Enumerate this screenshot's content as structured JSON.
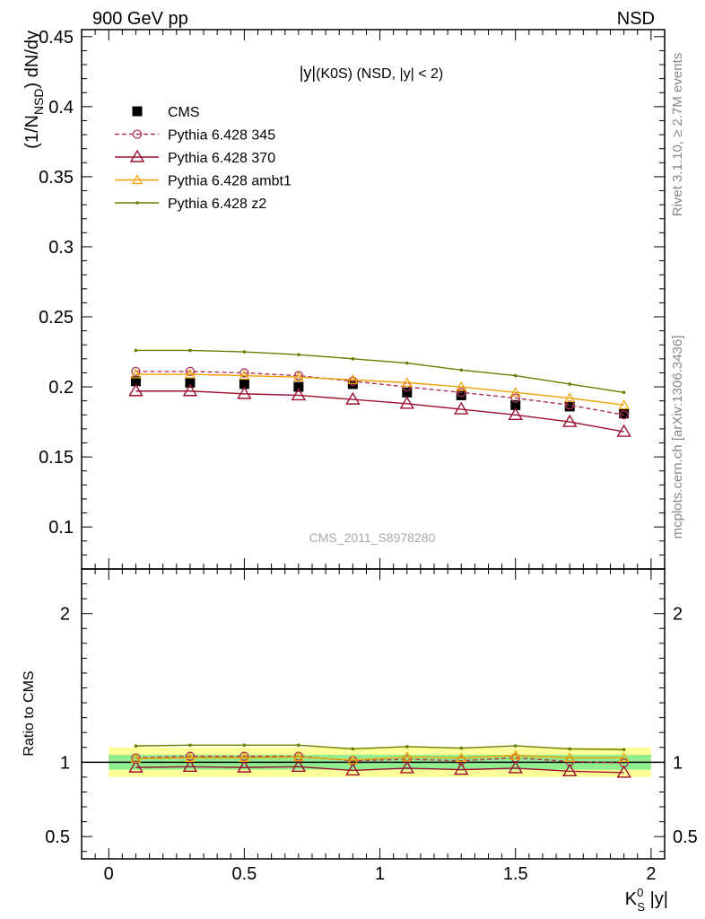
{
  "header": {
    "left": "900 GeV pp",
    "right": "NSD"
  },
  "side_labels": {
    "rivet": "Rivet 3.1.10, ≥ 2.7M events",
    "mcplots": "mcplots.cern.ch [arXiv:1306.3436]"
  },
  "watermark": "CMS_2011_S8978280",
  "colors": {
    "cms": "#000000",
    "p345": "#b03050",
    "p370": "#9b1030",
    "ambt1": "#f0a000",
    "z2": "#6e7a00",
    "band_inner": "#90ee90",
    "band_outer": "#ffff99"
  },
  "chart_data": [
    {
      "type": "line",
      "title": "|y|(K0S) (NSD, |y| < 2)",
      "title_parts": {
        "a": "|y|",
        "b": "(K0S) (NSD, |y| < 2)"
      },
      "ylabel": "(1/N_NSD) dN/dy",
      "ylabel_parts": {
        "pre": "(1/N",
        "sub": "NSD",
        "post": ") dN/dy"
      },
      "ylim": [
        0.07,
        0.455
      ],
      "xlim": [
        -0.1,
        2.05
      ],
      "yticks": [
        {
          "v": 0.1,
          "label": "0.1"
        },
        {
          "v": 0.15,
          "label": "0.15"
        },
        {
          "v": 0.2,
          "label": "0.2"
        },
        {
          "v": 0.25,
          "label": "0.25"
        },
        {
          "v": 0.3,
          "label": "0.3"
        },
        {
          "v": 0.35,
          "label": "0.35"
        },
        {
          "v": 0.4,
          "label": "0.4"
        },
        {
          "v": 0.45,
          "label": "0.45"
        }
      ],
      "x": [
        0.1,
        0.3,
        0.5,
        0.7,
        0.9,
        1.1,
        1.3,
        1.5,
        1.7,
        1.9
      ],
      "series": [
        {
          "key": "cms",
          "name": "CMS",
          "marker": "square",
          "values": [
            0.204,
            0.203,
            0.202,
            0.2,
            0.202,
            0.196,
            0.194,
            0.187,
            0.186,
            0.181
          ]
        },
        {
          "key": "p345",
          "name": "Pythia 6.428 345",
          "marker": "circle",
          "dashed": true,
          "values": [
            0.211,
            0.211,
            0.21,
            0.208,
            0.204,
            0.2,
            0.196,
            0.192,
            0.187,
            0.18
          ]
        },
        {
          "key": "p370",
          "name": "Pythia 6.428 370",
          "marker": "triangle",
          "values": [
            0.197,
            0.197,
            0.195,
            0.194,
            0.191,
            0.188,
            0.184,
            0.18,
            0.175,
            0.168
          ]
        },
        {
          "key": "ambt1",
          "name": "Pythia 6.428 ambt1",
          "marker": "triangle-small",
          "values": [
            0.209,
            0.209,
            0.208,
            0.207,
            0.205,
            0.203,
            0.2,
            0.196,
            0.192,
            0.187
          ]
        },
        {
          "key": "z2",
          "name": "Pythia 6.428 z2",
          "marker": "dot",
          "values": [
            0.226,
            0.226,
            0.225,
            0.223,
            0.22,
            0.217,
            0.212,
            0.208,
            0.202,
            0.196
          ]
        }
      ],
      "grid": false,
      "legend": "top-left"
    },
    {
      "type": "line",
      "ylabel": "Ratio to CMS",
      "xlabel": "K_S^0 |y|",
      "xlabel_parts": {
        "base": "K",
        "sup": "0",
        "sub": "S",
        "post": " |y|"
      },
      "ylim": [
        0.35,
        2.3
      ],
      "xlim": [
        -0.1,
        2.05
      ],
      "yticks": [
        {
          "v": 0.5,
          "label": "0.5"
        },
        {
          "v": 1,
          "label": "1"
        },
        {
          "v": 2,
          "label": "2"
        }
      ],
      "xticks": [
        {
          "v": 0,
          "label": "0"
        },
        {
          "v": 0.5,
          "label": "0.5"
        },
        {
          "v": 1,
          "label": "1"
        },
        {
          "v": 1.5,
          "label": "1.5"
        },
        {
          "v": 2,
          "label": "2"
        }
      ],
      "bands": {
        "inner": [
          0.95,
          1.05
        ],
        "outer": [
          0.9,
          1.1
        ],
        "x": [
          0.0,
          2.0
        ]
      },
      "x": [
        0.1,
        0.3,
        0.5,
        0.7,
        0.9,
        1.1,
        1.3,
        1.5,
        1.7,
        1.9
      ],
      "series": [
        {
          "key": "p345",
          "values": [
            1.03,
            1.04,
            1.04,
            1.04,
            1.01,
            1.02,
            1.01,
            1.03,
            1.005,
            0.995
          ]
        },
        {
          "key": "p370",
          "values": [
            0.965,
            0.97,
            0.965,
            0.97,
            0.945,
            0.96,
            0.95,
            0.96,
            0.94,
            0.93
          ]
        },
        {
          "key": "ambt1",
          "values": [
            1.025,
            1.03,
            1.03,
            1.035,
            1.015,
            1.035,
            1.03,
            1.045,
            1.03,
            1.03
          ]
        },
        {
          "key": "z2",
          "values": [
            1.11,
            1.115,
            1.115,
            1.115,
            1.09,
            1.105,
            1.095,
            1.11,
            1.09,
            1.085
          ]
        }
      ],
      "grid": false
    }
  ]
}
